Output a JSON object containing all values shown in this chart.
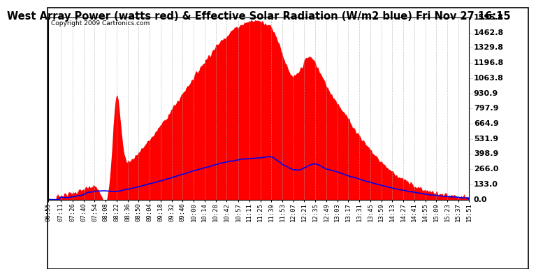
{
  "title": "West Array Power (watts red) & Effective Solar Radiation (W/m2 blue) Fri Nov 27 16:15",
  "copyright": "Copyright 2009 Cartronics.com",
  "background_color": "#ffffff",
  "plot_bg_color": "#ffffff",
  "grid_color": "#aaaaaa",
  "ylim": [
    0.0,
    1595.8
  ],
  "yticks": [
    0.0,
    133.0,
    266.0,
    398.9,
    531.9,
    664.9,
    797.9,
    930.9,
    1063.8,
    1196.8,
    1329.8,
    1462.8,
    1595.8
  ],
  "tick_labels": [
    "06:55",
    "07:11",
    "07:26",
    "07:40",
    "07:54",
    "08:08",
    "08:22",
    "08:36",
    "08:50",
    "09:04",
    "09:18",
    "09:32",
    "09:46",
    "10:00",
    "10:14",
    "10:28",
    "10:42",
    "10:57",
    "11:11",
    "11:25",
    "11:39",
    "11:53",
    "12:07",
    "12:21",
    "12:35",
    "12:49",
    "13:03",
    "13:17",
    "13:31",
    "13:45",
    "13:59",
    "14:13",
    "14:27",
    "14:41",
    "14:55",
    "15:09",
    "15:23",
    "15:37",
    "15:51"
  ],
  "power_color": "#ff0000",
  "radiation_color": "#0000ee",
  "title_fontsize": 10.5,
  "tick_fontsize": 6.5,
  "copyright_fontsize": 6.5,
  "ytick_fontsize": 8
}
